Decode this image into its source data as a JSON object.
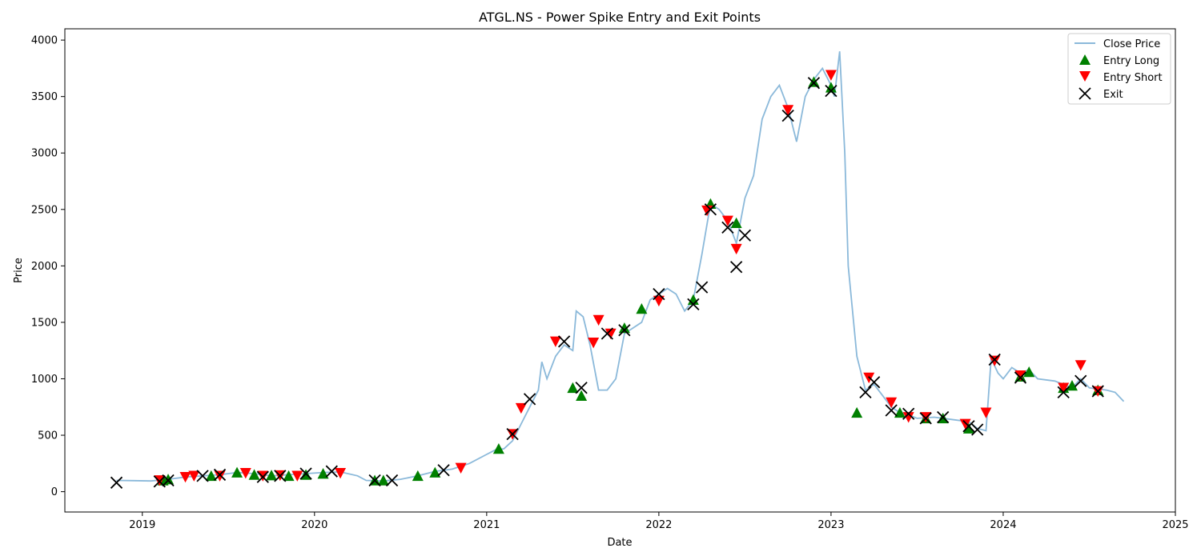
{
  "chart_data": {
    "type": "line",
    "title": "ATGL.NS - Power Spike Entry and Exit Points",
    "xlabel": "Date",
    "ylabel": "Price",
    "xlim": [
      2018.55,
      2025.0
    ],
    "ylim": [
      -180,
      4100
    ],
    "x_ticks": [
      2019,
      2020,
      2021,
      2022,
      2023,
      2024,
      2025
    ],
    "x_tick_labels": [
      "2019",
      "2020",
      "2021",
      "2022",
      "2023",
      "2024",
      "2025"
    ],
    "y_ticks": [
      0,
      500,
      1000,
      1500,
      2000,
      2500,
      3000,
      3500,
      4000
    ],
    "y_tick_labels": [
      "0",
      "500",
      "1000",
      "1500",
      "2000",
      "2500",
      "3000",
      "3500",
      "4000"
    ],
    "legend_position": "top-right",
    "colors": {
      "close": "#8bb9da",
      "entry_long": "#008000",
      "entry_short": "#ff0000",
      "exit": "#000000"
    },
    "series": [
      {
        "name": "Close Price",
        "style": "line",
        "points": [
          [
            2018.85,
            100
          ],
          [
            2018.95,
            98
          ],
          [
            2019.05,
            95
          ],
          [
            2019.15,
            110
          ],
          [
            2019.25,
            130
          ],
          [
            2019.35,
            140
          ],
          [
            2019.45,
            150
          ],
          [
            2019.55,
            170
          ],
          [
            2019.65,
            160
          ],
          [
            2019.75,
            140
          ],
          [
            2019.85,
            150
          ],
          [
            2019.95,
            160
          ],
          [
            2020.05,
            170
          ],
          [
            2020.15,
            175
          ],
          [
            2020.25,
            140
          ],
          [
            2020.3,
            100
          ],
          [
            2020.4,
            95
          ],
          [
            2020.5,
            110
          ],
          [
            2020.6,
            140
          ],
          [
            2020.7,
            180
          ],
          [
            2020.8,
            200
          ],
          [
            2020.9,
            250
          ],
          [
            2021.0,
            330
          ],
          [
            2021.05,
            370
          ],
          [
            2021.1,
            380
          ],
          [
            2021.15,
            450
          ],
          [
            2021.2,
            600
          ],
          [
            2021.25,
            750
          ],
          [
            2021.3,
            900
          ],
          [
            2021.32,
            1150
          ],
          [
            2021.35,
            1000
          ],
          [
            2021.4,
            1200
          ],
          [
            2021.45,
            1300
          ],
          [
            2021.5,
            1250
          ],
          [
            2021.52,
            1600
          ],
          [
            2021.56,
            1550
          ],
          [
            2021.6,
            1300
          ],
          [
            2021.65,
            900
          ],
          [
            2021.7,
            900
          ],
          [
            2021.75,
            1000
          ],
          [
            2021.8,
            1400
          ],
          [
            2021.85,
            1450
          ],
          [
            2021.9,
            1500
          ],
          [
            2021.95,
            1700
          ],
          [
            2022.0,
            1750
          ],
          [
            2022.05,
            1800
          ],
          [
            2022.1,
            1750
          ],
          [
            2022.15,
            1600
          ],
          [
            2022.2,
            1700
          ],
          [
            2022.25,
            2100
          ],
          [
            2022.3,
            2550
          ],
          [
            2022.35,
            2500
          ],
          [
            2022.4,
            2400
          ],
          [
            2022.45,
            2200
          ],
          [
            2022.5,
            2600
          ],
          [
            2022.55,
            2800
          ],
          [
            2022.6,
            3300
          ],
          [
            2022.65,
            3500
          ],
          [
            2022.7,
            3600
          ],
          [
            2022.75,
            3400
          ],
          [
            2022.8,
            3100
          ],
          [
            2022.85,
            3500
          ],
          [
            2022.9,
            3650
          ],
          [
            2022.95,
            3750
          ],
          [
            2023.0,
            3600
          ],
          [
            2023.02,
            3500
          ],
          [
            2023.05,
            3900
          ],
          [
            2023.08,
            3000
          ],
          [
            2023.1,
            2000
          ],
          [
            2023.15,
            1200
          ],
          [
            2023.2,
            900
          ],
          [
            2023.25,
            950
          ],
          [
            2023.3,
            850
          ],
          [
            2023.35,
            750
          ],
          [
            2023.4,
            700
          ],
          [
            2023.45,
            680
          ],
          [
            2023.5,
            650
          ],
          [
            2023.6,
            660
          ],
          [
            2023.7,
            640
          ],
          [
            2023.8,
            620
          ],
          [
            2023.85,
            560
          ],
          [
            2023.9,
            540
          ],
          [
            2023.93,
            1180
          ],
          [
            2023.97,
            1050
          ],
          [
            2024.0,
            1000
          ],
          [
            2024.05,
            1100
          ],
          [
            2024.1,
            1050
          ],
          [
            2024.15,
            1080
          ],
          [
            2024.2,
            1000
          ],
          [
            2024.3,
            980
          ],
          [
            2024.4,
            920
          ],
          [
            2024.45,
            1000
          ],
          [
            2024.5,
            920
          ],
          [
            2024.6,
            900
          ],
          [
            2024.65,
            880
          ],
          [
            2024.7,
            800
          ]
        ]
      },
      {
        "name": "Entry Long",
        "style": "marker-up",
        "points": [
          [
            2019.12,
            100
          ],
          [
            2019.15,
            110
          ],
          [
            2019.4,
            140
          ],
          [
            2019.55,
            170
          ],
          [
            2019.65,
            150
          ],
          [
            2019.75,
            145
          ],
          [
            2019.85,
            140
          ],
          [
            2019.95,
            150
          ],
          [
            2020.05,
            160
          ],
          [
            2020.35,
            100
          ],
          [
            2020.4,
            100
          ],
          [
            2020.6,
            140
          ],
          [
            2020.7,
            170
          ],
          [
            2021.07,
            380
          ],
          [
            2021.5,
            920
          ],
          [
            2021.55,
            850
          ],
          [
            2021.8,
            1450
          ],
          [
            2021.9,
            1620
          ],
          [
            2022.2,
            1700
          ],
          [
            2022.3,
            2550
          ],
          [
            2022.45,
            2380
          ],
          [
            2022.9,
            3630
          ],
          [
            2023.0,
            3580
          ],
          [
            2023.15,
            700
          ],
          [
            2023.4,
            700
          ],
          [
            2023.55,
            650
          ],
          [
            2023.65,
            650
          ],
          [
            2023.8,
            560
          ],
          [
            2024.1,
            1020
          ],
          [
            2024.15,
            1060
          ],
          [
            2024.35,
            920
          ],
          [
            2024.4,
            940
          ],
          [
            2024.55,
            900
          ]
        ]
      },
      {
        "name": "Entry Short",
        "style": "marker-down",
        "points": [
          [
            2019.1,
            100
          ],
          [
            2019.25,
            130
          ],
          [
            2019.3,
            140
          ],
          [
            2019.45,
            140
          ],
          [
            2019.6,
            165
          ],
          [
            2019.7,
            140
          ],
          [
            2019.8,
            145
          ],
          [
            2019.9,
            140
          ],
          [
            2020.15,
            165
          ],
          [
            2020.85,
            210
          ],
          [
            2021.2,
            740
          ],
          [
            2021.15,
            510
          ],
          [
            2021.4,
            1330
          ],
          [
            2021.65,
            1520
          ],
          [
            2021.62,
            1320
          ],
          [
            2021.72,
            1400
          ],
          [
            2022.0,
            1690
          ],
          [
            2022.28,
            2490
          ],
          [
            2022.4,
            2400
          ],
          [
            2022.45,
            2150
          ],
          [
            2022.75,
            3380
          ],
          [
            2023.0,
            3690
          ],
          [
            2023.22,
            1010
          ],
          [
            2023.35,
            790
          ],
          [
            2023.45,
            660
          ],
          [
            2023.55,
            660
          ],
          [
            2023.78,
            600
          ],
          [
            2023.9,
            700
          ],
          [
            2023.95,
            1160
          ],
          [
            2024.1,
            1030
          ],
          [
            2024.35,
            920
          ],
          [
            2024.45,
            1120
          ],
          [
            2024.55,
            890
          ]
        ]
      },
      {
        "name": "Exit",
        "style": "marker-x",
        "points": [
          [
            2018.85,
            80
          ],
          [
            2019.1,
            90
          ],
          [
            2019.15,
            100
          ],
          [
            2019.35,
            140
          ],
          [
            2019.45,
            150
          ],
          [
            2019.7,
            130
          ],
          [
            2019.8,
            140
          ],
          [
            2019.95,
            160
          ],
          [
            2020.1,
            180
          ],
          [
            2020.35,
            100
          ],
          [
            2020.45,
            100
          ],
          [
            2020.75,
            190
          ],
          [
            2021.15,
            510
          ],
          [
            2021.25,
            820
          ],
          [
            2021.45,
            1330
          ],
          [
            2021.55,
            920
          ],
          [
            2021.7,
            1400
          ],
          [
            2021.8,
            1430
          ],
          [
            2022.0,
            1750
          ],
          [
            2022.2,
            1660
          ],
          [
            2022.25,
            1810
          ],
          [
            2022.3,
            2500
          ],
          [
            2022.4,
            2340
          ],
          [
            2022.45,
            1990
          ],
          [
            2022.5,
            2270
          ],
          [
            2022.75,
            3330
          ],
          [
            2022.9,
            3620
          ],
          [
            2023.0,
            3550
          ],
          [
            2023.2,
            880
          ],
          [
            2023.25,
            970
          ],
          [
            2023.35,
            720
          ],
          [
            2023.45,
            690
          ],
          [
            2023.55,
            650
          ],
          [
            2023.65,
            660
          ],
          [
            2023.8,
            580
          ],
          [
            2023.85,
            550
          ],
          [
            2023.95,
            1170
          ],
          [
            2024.1,
            1010
          ],
          [
            2024.35,
            880
          ],
          [
            2024.45,
            980
          ],
          [
            2024.55,
            890
          ]
        ]
      }
    ],
    "legend": [
      "Close Price",
      "Entry Long",
      "Entry Short",
      "Exit"
    ]
  }
}
